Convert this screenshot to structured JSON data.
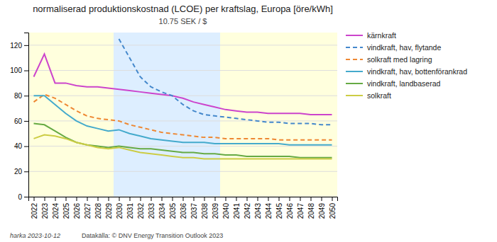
{
  "chart_data": {
    "type": "line",
    "title": "normaliserad produktionskostnad (LCOE) per kraftslag, Europa [öre/kWh]",
    "subtitle": "10.75 SEK / $",
    "annotations": [
      "harka 2023-10-12",
      "Datakälla: © DNV Energy Transition Outlook 2023"
    ],
    "x": [
      2022,
      2023,
      2024,
      2025,
      2026,
      2027,
      2028,
      2029,
      2030,
      2031,
      2032,
      2033,
      2034,
      2035,
      2036,
      2037,
      2038,
      2039,
      2040,
      2041,
      2042,
      2043,
      2044,
      2045,
      2046,
      2047,
      2048,
      2049,
      2050
    ],
    "series": [
      {
        "name": "kärnkraft",
        "color": "#cc44cc",
        "line_style": "solid",
        "values": [
          95,
          113,
          90,
          90,
          88,
          87,
          87,
          86,
          85,
          84,
          83,
          82,
          81,
          80,
          78,
          75,
          73,
          71,
          69,
          68,
          67,
          67,
          66,
          66,
          66,
          66,
          65,
          65,
          65
        ]
      },
      {
        "name": "vindkraft, hav, flytande",
        "color": "#4488cc",
        "line_style": "dashed",
        "values": [
          null,
          null,
          null,
          null,
          null,
          null,
          null,
          null,
          125,
          110,
          95,
          87,
          83,
          80,
          73,
          68,
          65,
          64,
          63,
          62,
          61,
          60,
          59,
          59,
          58,
          58,
          58,
          57,
          57
        ]
      },
      {
        "name": "solkraft med lagring",
        "color": "#ee8833",
        "line_style": "dashed",
        "values": [
          75,
          81,
          78,
          73,
          68,
          64,
          62,
          61,
          60,
          57,
          55,
          53,
          51,
          50,
          49,
          48,
          47,
          47,
          46,
          46,
          46,
          46,
          46,
          45,
          45,
          45,
          45,
          45,
          45
        ]
      },
      {
        "name": "vindkraft, hav, bottenförankrad",
        "color": "#44aacc",
        "line_style": "solid",
        "values": [
          80,
          80,
          73,
          66,
          60,
          56,
          54,
          52,
          53,
          50,
          48,
          46,
          45,
          44,
          43,
          43,
          43,
          42,
          42,
          42,
          42,
          42,
          42,
          42,
          41,
          41,
          41,
          41,
          41
        ]
      },
      {
        "name": "vindkraft, landbaserad",
        "color": "#66aa44",
        "line_style": "solid",
        "values": [
          58,
          57,
          52,
          47,
          43,
          41,
          40,
          39,
          40,
          39,
          38,
          38,
          37,
          36,
          35,
          35,
          34,
          34,
          33,
          33,
          32,
          32,
          32,
          32,
          32,
          31,
          31,
          31,
          31
        ]
      },
      {
        "name": "solkraft",
        "color": "#cccc44",
        "line_style": "solid",
        "values": [
          46,
          49,
          48,
          46,
          43,
          41,
          39,
          38,
          39,
          37,
          35,
          34,
          33,
          32,
          31,
          31,
          30,
          30,
          30,
          30,
          30,
          30,
          30,
          30,
          30,
          30,
          30,
          30,
          30
        ]
      }
    ],
    "bands": [
      {
        "from": 2022,
        "to": 2029,
        "color": "#ffffdd"
      },
      {
        "from": 2030,
        "to": 2039,
        "color": "#ddeeff"
      },
      {
        "from": 2040,
        "to": 2050,
        "color": "#ffffdd"
      }
    ],
    "xlim": [
      2021.5,
      2050.5
    ],
    "xticks": [
      2022,
      2023,
      2024,
      2025,
      2026,
      2027,
      2028,
      2029,
      2030,
      2031,
      2032,
      2033,
      2034,
      2035,
      2036,
      2037,
      2038,
      2039,
      2040,
      2041,
      2042,
      2043,
      2044,
      2045,
      2046,
      2047,
      2048,
      2049,
      2050
    ],
    "ylim": [
      0,
      130
    ],
    "yticks": [
      0,
      20,
      40,
      60,
      80,
      100,
      120
    ],
    "grid": true,
    "legend": "right"
  }
}
